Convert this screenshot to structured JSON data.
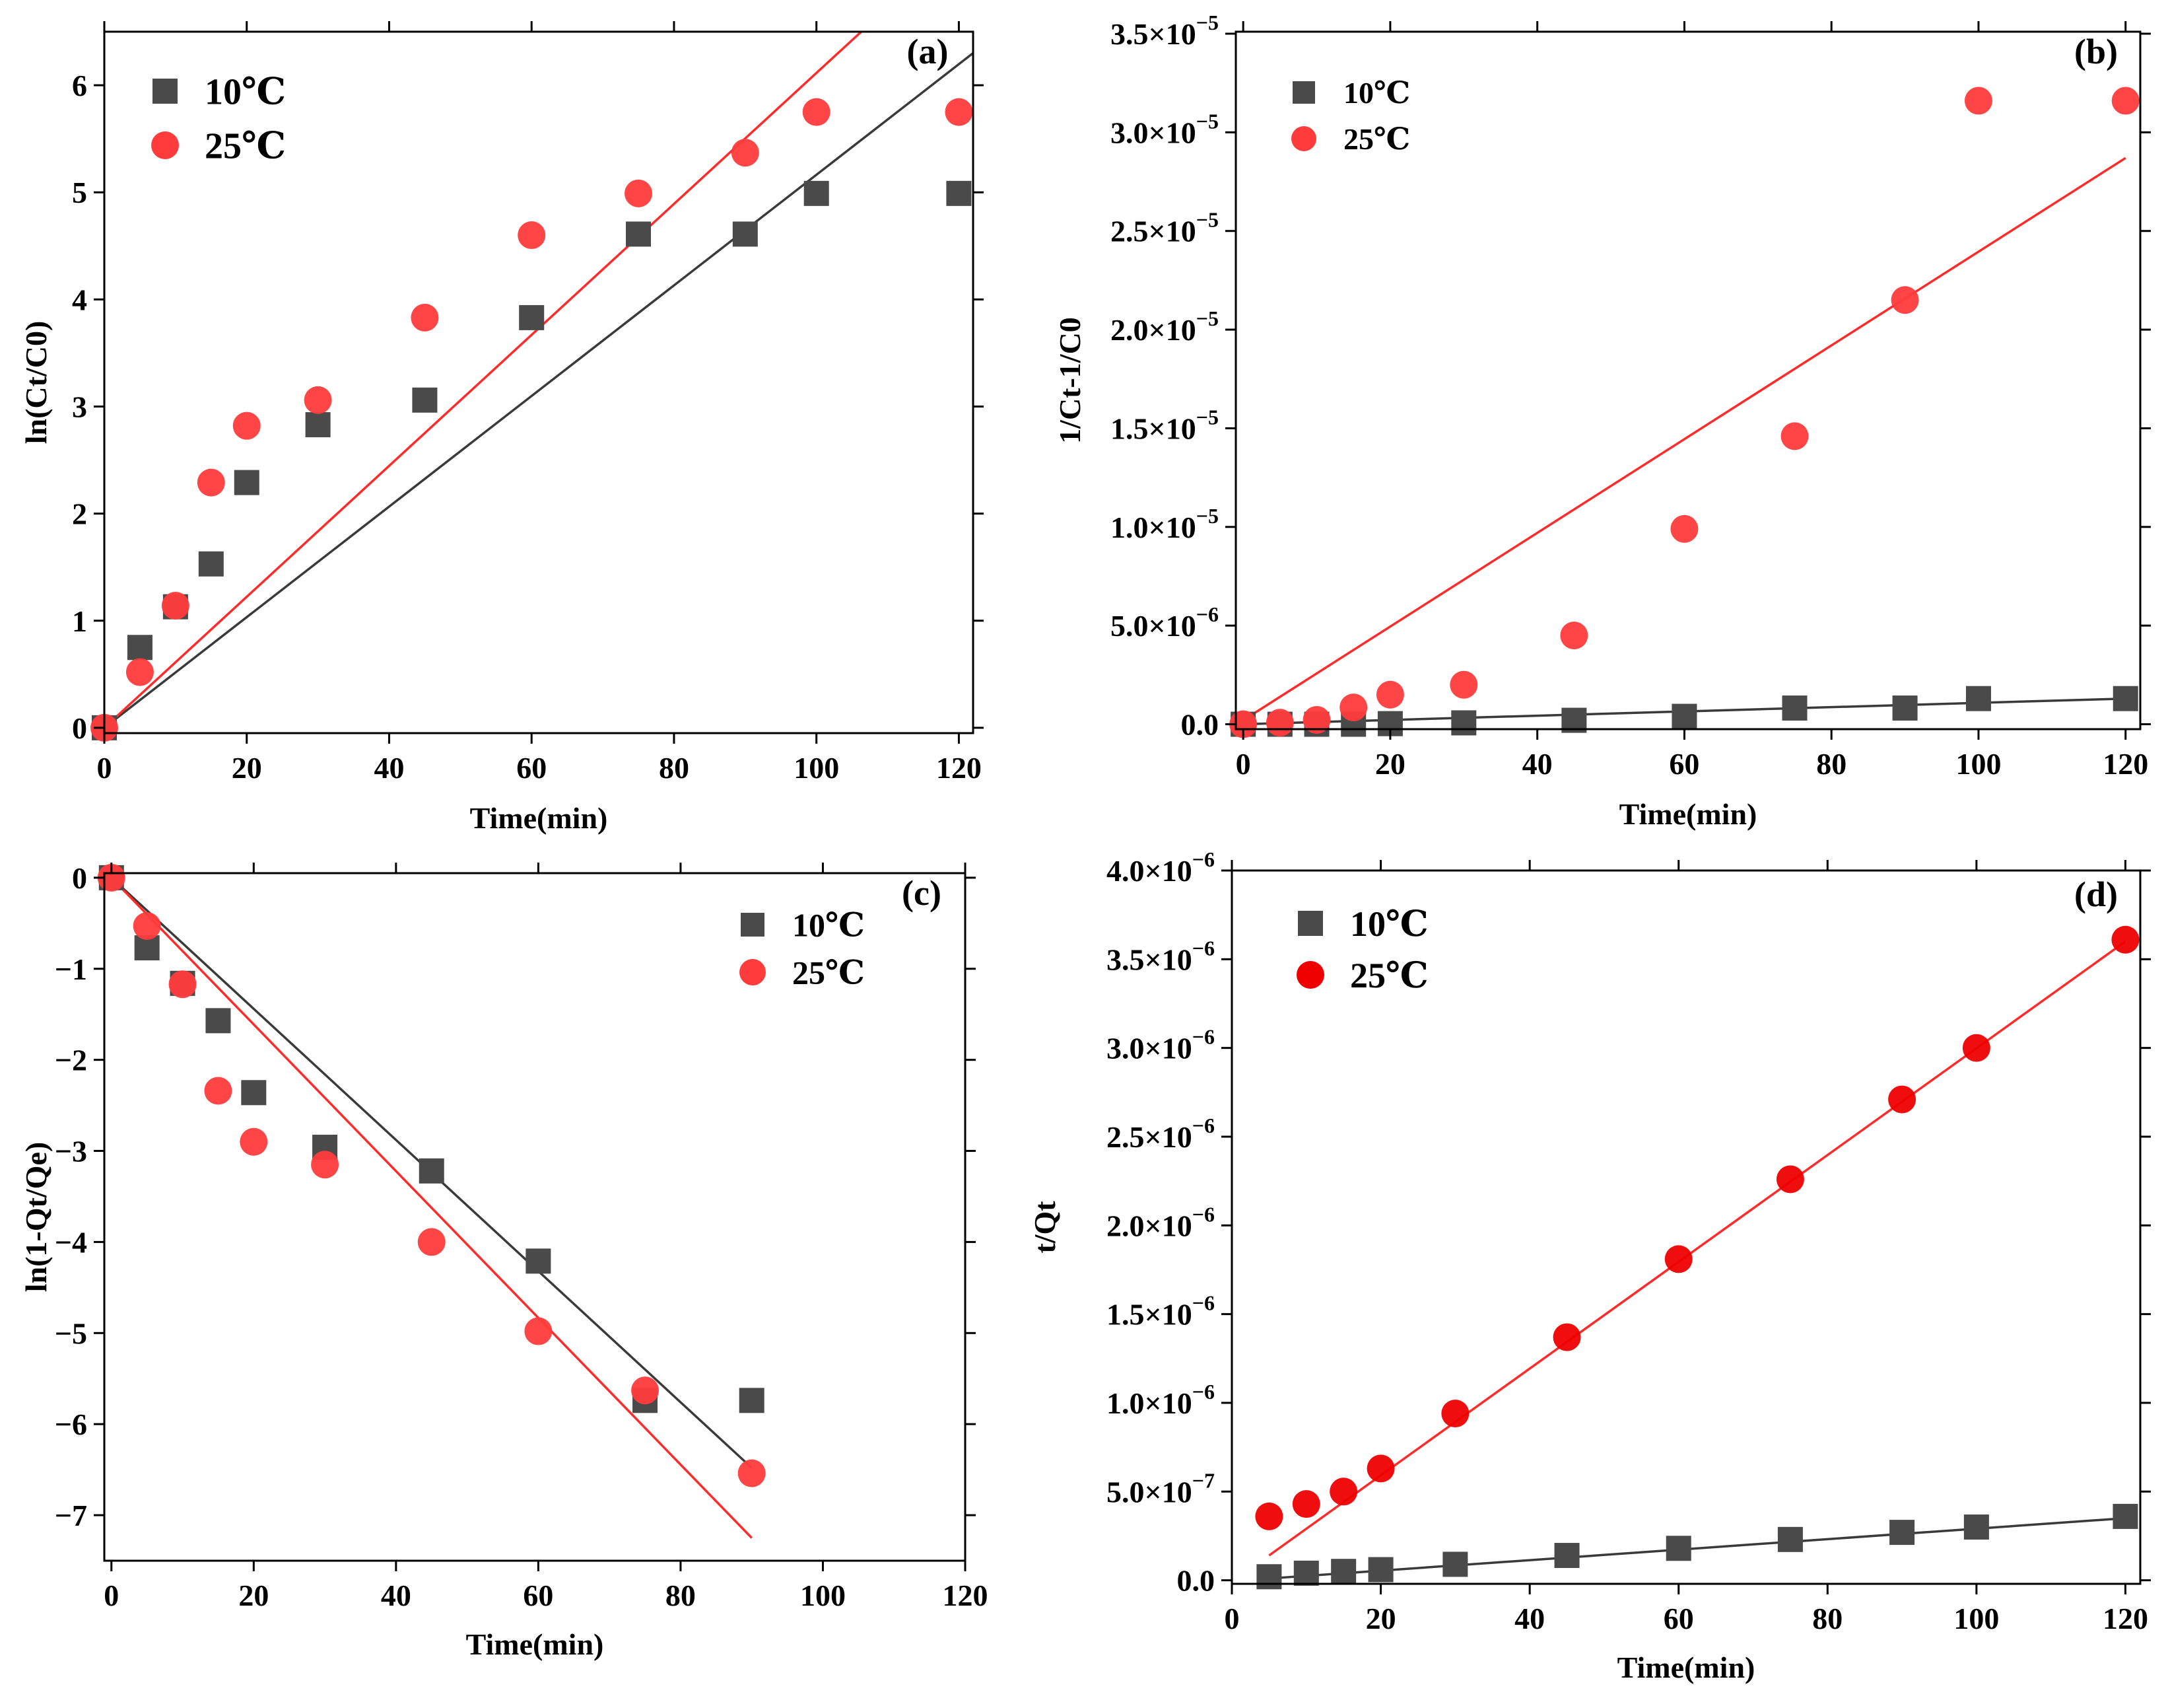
{
  "colors": {
    "series_10": "#4a4a4a",
    "series_25": "#ff3b3b",
    "fit_10": "#3a3a3a",
    "fit_25": "#ff2a2a",
    "series_25_d": "#ee0000"
  },
  "chart_data": [
    {
      "id": "a",
      "type": "scatter",
      "panel_label": "(a)",
      "xlabel": "Time(min)",
      "ylabel": "ln(Ct/C0)",
      "xlim": [
        0,
        122
      ],
      "ylim": [
        -0.05,
        6.5
      ],
      "xticks": [
        0,
        20,
        40,
        60,
        80,
        100,
        120
      ],
      "xtick_labels": [
        "0",
        "20",
        "40",
        "60",
        "80",
        "100",
        "120"
      ],
      "yticks": [
        0,
        1,
        2,
        3,
        4,
        5,
        6
      ],
      "ytick_labels": [
        "0",
        "1",
        "2",
        "3",
        "4",
        "5",
        "6"
      ],
      "legend": {
        "position": "top-left",
        "entries": [
          "10℃",
          "25℃"
        ]
      },
      "series": [
        {
          "name": "10℃",
          "marker": "square",
          "x": [
            0,
            5,
            10,
            15,
            20,
            30,
            45,
            60,
            75,
            90,
            100,
            120
          ],
          "y": [
            0,
            0.75,
            1.13,
            1.53,
            2.29,
            2.83,
            3.06,
            3.83,
            4.61,
            4.61,
            4.99,
            4.99
          ]
        },
        {
          "name": "25℃",
          "marker": "circle",
          "x": [
            0,
            5,
            10,
            15,
            20,
            30,
            45,
            60,
            75,
            90,
            100,
            120
          ],
          "y": [
            0,
            0.52,
            1.14,
            2.29,
            2.82,
            3.06,
            3.83,
            4.6,
            4.99,
            5.37,
            5.75,
            5.75
          ]
        }
      ],
      "fits": [
        {
          "name": "10℃",
          "x": [
            0,
            122
          ],
          "y": [
            0,
            6.3
          ]
        },
        {
          "name": "25℃",
          "x": [
            0,
            106.3
          ],
          "y": [
            0,
            6.5
          ]
        }
      ]
    },
    {
      "id": "b",
      "type": "scatter",
      "panel_label": "(b)",
      "xlabel": "Time(min)",
      "ylabel": "1/Ct-1/C0",
      "xlim": [
        -1,
        122
      ],
      "ylim": [
        -2.5e-07,
        3.51e-05
      ],
      "xticks": [
        0,
        20,
        40,
        60,
        80,
        100,
        120
      ],
      "xtick_labels": [
        "0",
        "20",
        "40",
        "60",
        "80",
        "100",
        "120"
      ],
      "yticks": [
        0,
        5e-06,
        1e-05,
        1.5e-05,
        2e-05,
        2.5e-05,
        3e-05,
        3.5e-05
      ],
      "ytick_labels": [
        {
          "m": "0.0",
          "e": ""
        },
        {
          "m": "5.0×10",
          "e": "−6"
        },
        {
          "m": "1.0×10",
          "e": "−5"
        },
        {
          "m": "1.5×10",
          "e": "−5"
        },
        {
          "m": "2.0×10",
          "e": "−5"
        },
        {
          "m": "2.5×10",
          "e": "−5"
        },
        {
          "m": "3.0×10",
          "e": "−5"
        },
        {
          "m": "3.5×10",
          "e": "−5"
        }
      ],
      "legend": {
        "position": "top-left",
        "entries": [
          "10℃",
          "25℃"
        ]
      },
      "series": [
        {
          "name": "10℃",
          "marker": "square",
          "x": [
            0,
            5,
            10,
            15,
            20,
            30,
            45,
            60,
            75,
            90,
            100,
            120
          ],
          "y": [
            0,
            0,
            0,
            0,
            3e-08,
            7e-08,
            2e-07,
            4e-07,
            8.2e-07,
            8.2e-07,
            1.3e-06,
            1.3e-06
          ]
        },
        {
          "name": "25℃",
          "marker": "circle",
          "x": [
            0,
            5,
            10,
            15,
            20,
            30,
            45,
            60,
            75,
            90,
            100,
            120
          ],
          "y": [
            0,
            8e-08,
            2.2e-07,
            8.5e-07,
            1.5e-06,
            2e-06,
            4.5e-06,
            9.9e-06,
            1.46e-05,
            2.15e-05,
            3.16e-05,
            3.16e-05
          ]
        }
      ],
      "fits": [
        {
          "name": "10℃",
          "x": [
            0,
            120
          ],
          "y": [
            0,
            1.3e-06
          ]
        },
        {
          "name": "25℃",
          "x": [
            0,
            120
          ],
          "y": [
            2e-07,
            2.87e-05
          ]
        }
      ]
    },
    {
      "id": "c",
      "type": "scatter",
      "panel_label": "(c)",
      "xlabel": "Time(min)",
      "ylabel": "ln(1-Qt/Qe)",
      "xlim": [
        -1,
        120
      ],
      "ylim": [
        -7.5,
        0.05
      ],
      "xticks": [
        0,
        20,
        40,
        60,
        80,
        100,
        120
      ],
      "xtick_labels": [
        "0",
        "20",
        "40",
        "60",
        "80",
        "100",
        "120"
      ],
      "yticks": [
        0,
        -1,
        -2,
        -3,
        -4,
        -5,
        -6,
        -7
      ],
      "ytick_labels": [
        "0",
        "−1",
        "−2",
        "−3",
        "−4",
        "−5",
        "−6",
        "−7"
      ],
      "legend": {
        "position": "top-right",
        "entries": [
          "10℃",
          "25℃"
        ]
      },
      "series": [
        {
          "name": "10℃",
          "marker": "square",
          "x": [
            0,
            5,
            10,
            15,
            20,
            30,
            45,
            60,
            75,
            90
          ],
          "y": [
            0,
            -0.77,
            -1.16,
            -1.57,
            -2.36,
            -2.96,
            -3.22,
            -4.21,
            -5.74,
            -5.74
          ]
        },
        {
          "name": "25℃",
          "marker": "circle",
          "x": [
            0,
            5,
            10,
            15,
            20,
            30,
            45,
            60,
            75,
            90
          ],
          "y": [
            0,
            -0.53,
            -1.17,
            -2.34,
            -2.9,
            -3.15,
            -4.0,
            -4.98,
            -5.63,
            -6.54
          ]
        }
      ],
      "fits": [
        {
          "name": "10℃",
          "x": [
            0,
            90
          ],
          "y": [
            0,
            -6.48
          ]
        },
        {
          "name": "25℃",
          "x": [
            0,
            90
          ],
          "y": [
            0,
            -7.25
          ]
        }
      ]
    },
    {
      "id": "d",
      "type": "scatter",
      "panel_label": "(d)",
      "xlabel": "Time(min)",
      "ylabel": "t/Qt",
      "xlim": [
        0,
        122
      ],
      "ylim": [
        -2e-08,
        4e-06
      ],
      "xticks": [
        0,
        20,
        40,
        60,
        80,
        100,
        120
      ],
      "xtick_labels": [
        "0",
        "20",
        "40",
        "60",
        "80",
        "100",
        "120"
      ],
      "yticks": [
        0,
        5e-07,
        1e-06,
        1.5e-06,
        2e-06,
        2.5e-06,
        3e-06,
        3.5e-06,
        4e-06
      ],
      "ytick_labels": [
        {
          "m": "0.0",
          "e": ""
        },
        {
          "m": "5.0×10",
          "e": "−7"
        },
        {
          "m": "1.0×10",
          "e": "−6"
        },
        {
          "m": "1.5×10",
          "e": "−6"
        },
        {
          "m": "2.0×10",
          "e": "−6"
        },
        {
          "m": "2.5×10",
          "e": "−6"
        },
        {
          "m": "3.0×10",
          "e": "−6"
        },
        {
          "m": "3.5×10",
          "e": "−6"
        },
        {
          "m": "4.0×10",
          "e": "−6"
        }
      ],
      "legend": {
        "position": "top-left",
        "entries": [
          "10℃",
          "25℃"
        ]
      },
      "series": [
        {
          "name": "10℃",
          "marker": "square",
          "x": [
            5,
            10,
            15,
            20,
            30,
            45,
            60,
            75,
            90,
            100,
            120
          ],
          "y": [
            2e-08,
            4e-08,
            5e-08,
            6e-08,
            9e-08,
            1.4e-07,
            1.8e-07,
            2.3e-07,
            2.7e-07,
            3e-07,
            3.6e-07
          ]
        },
        {
          "name": "25℃",
          "marker": "circle",
          "x": [
            5,
            10,
            15,
            20,
            30,
            45,
            60,
            75,
            90,
            100,
            120
          ],
          "y": [
            3.6e-07,
            4.3e-07,
            5e-07,
            6.3e-07,
            9.4e-07,
            1.37e-06,
            1.81e-06,
            2.26e-06,
            2.71e-06,
            3e-06,
            3.61e-06
          ]
        }
      ],
      "fits": [
        {
          "name": "10℃",
          "x": [
            5,
            120
          ],
          "y": [
            1e-08,
            3.5e-07
          ]
        },
        {
          "name": "25℃",
          "x": [
            5,
            120
          ],
          "y": [
            1.4e-07,
            3.6e-06
          ]
        }
      ]
    }
  ]
}
